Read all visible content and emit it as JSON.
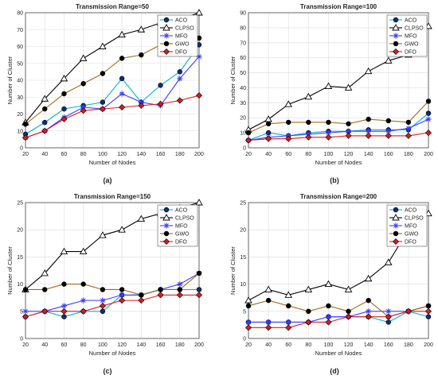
{
  "chart_data": [
    {
      "type": "line",
      "title": "Transmission Range=50",
      "caption": "(a)",
      "xlabel": "Number of Nodes",
      "ylabel": "Number of Cluster",
      "x": [
        20,
        40,
        60,
        80,
        100,
        120,
        140,
        160,
        180,
        200
      ],
      "xlim": [
        20,
        200
      ],
      "ylim": [
        0,
        80
      ],
      "yticks": [
        0,
        10,
        20,
        30,
        40,
        50,
        60,
        70,
        80
      ],
      "grid": true,
      "legend_position": "top-right",
      "series": [
        {
          "name": "ACO",
          "values": [
            8,
            15,
            23,
            25,
            27,
            41,
            27,
            37,
            45,
            61
          ]
        },
        {
          "name": "CLPSO",
          "values": [
            15,
            29,
            41,
            53,
            60,
            67,
            70,
            74,
            76,
            80
          ]
        },
        {
          "name": "MFO",
          "values": [
            6,
            10,
            18,
            24,
            23,
            32,
            27,
            25,
            41,
            54
          ]
        },
        {
          "name": "GWO",
          "values": [
            14,
            23,
            32,
            38,
            44,
            53,
            55,
            61,
            66,
            65
          ]
        },
        {
          "name": "DFO",
          "values": [
            6,
            10,
            17,
            22,
            23,
            24,
            25,
            26,
            28,
            31
          ]
        }
      ]
    },
    {
      "type": "line",
      "title": "Transmission Range=100",
      "caption": "(b)",
      "xlabel": "Number of Nodes",
      "ylabel": "Number of Cluster",
      "x": [
        20,
        40,
        60,
        80,
        100,
        120,
        140,
        160,
        180,
        200
      ],
      "xlim": [
        20,
        200
      ],
      "ylim": [
        0,
        90
      ],
      "yticks": [
        0,
        10,
        20,
        30,
        40,
        50,
        60,
        70,
        80,
        90
      ],
      "grid": true,
      "legend_position": "top-right",
      "series": [
        {
          "name": "ACO",
          "values": [
            5,
            10,
            8,
            10,
            11,
            11,
            12,
            12,
            12,
            23
          ]
        },
        {
          "name": "CLPSO",
          "values": [
            12,
            19,
            29,
            34,
            41,
            40,
            51,
            58,
            62,
            81
          ]
        },
        {
          "name": "MFO",
          "values": [
            5,
            7,
            8,
            9,
            10,
            11,
            11,
            11,
            13,
            19
          ]
        },
        {
          "name": "GWO",
          "values": [
            10,
            16,
            17,
            17,
            17,
            16,
            19,
            18,
            17,
            31
          ]
        },
        {
          "name": "DFO",
          "values": [
            5,
            6,
            6,
            7,
            7,
            8,
            8,
            8,
            8,
            10
          ]
        }
      ]
    },
    {
      "type": "line",
      "title": "Transmission Range=150",
      "caption": "(c)",
      "xlabel": "Number of Nodes",
      "ylabel": "Number of Cluster",
      "x": [
        20,
        40,
        60,
        80,
        100,
        120,
        140,
        160,
        180,
        200
      ],
      "xlim": [
        20,
        200
      ],
      "ylim": [
        0,
        25
      ],
      "yticks": [
        0,
        5,
        10,
        15,
        20,
        25
      ],
      "grid": true,
      "legend_position": "top-right",
      "series": [
        {
          "name": "ACO",
          "values": [
            4,
            5,
            4,
            5,
            5,
            8,
            8,
            9,
            9,
            9
          ]
        },
        {
          "name": "CLPSO",
          "values": [
            9,
            12,
            16,
            16,
            19,
            20,
            22,
            23,
            24,
            25
          ]
        },
        {
          "name": "MFO",
          "values": [
            5,
            5,
            6,
            7,
            7,
            8,
            8,
            9,
            10,
            12
          ]
        },
        {
          "name": "GWO",
          "values": [
            9,
            9,
            10,
            10,
            9,
            9,
            8,
            9,
            9,
            12
          ]
        },
        {
          "name": "DFO",
          "values": [
            4,
            5,
            5,
            5,
            6,
            7,
            7,
            8,
            8,
            8
          ]
        }
      ]
    },
    {
      "type": "line",
      "title": "Transmission Range=200",
      "caption": "(d)",
      "xlabel": "Number of Nodes",
      "ylabel": "Number of Cluster",
      "x": [
        20,
        40,
        60,
        80,
        100,
        120,
        140,
        160,
        180,
        200
      ],
      "xlim": [
        20,
        200
      ],
      "ylim": [
        0,
        25
      ],
      "yticks": [
        0,
        5,
        10,
        15,
        20,
        25
      ],
      "grid": true,
      "legend_position": "top-right",
      "series": [
        {
          "name": "ACO",
          "values": [
            3,
            3,
            3,
            3,
            4,
            4,
            4,
            3,
            5,
            4
          ]
        },
        {
          "name": "CLPSO",
          "values": [
            7,
            9,
            8,
            9,
            10,
            9,
            11,
            14,
            20,
            23
          ]
        },
        {
          "name": "MFO",
          "values": [
            3,
            3,
            3,
            3,
            4,
            4,
            5,
            5,
            5,
            6
          ]
        },
        {
          "name": "GWO",
          "values": [
            6,
            7,
            6,
            5,
            6,
            5,
            7,
            4,
            5,
            6
          ]
        },
        {
          "name": "DFO",
          "values": [
            2,
            2,
            2,
            3,
            3,
            4,
            4,
            4,
            5,
            5
          ]
        }
      ]
    }
  ],
  "series_style": {
    "ACO": {
      "color": "#00b4d8",
      "marker": "circle-filled",
      "fill": "#0b2f7a"
    },
    "CLPSO": {
      "color": "#000000",
      "marker": "triangle-open",
      "fill": "#ffffff"
    },
    "MFO": {
      "color": "#3b3bff",
      "marker": "star",
      "fill": "#3b3bff"
    },
    "GWO": {
      "color": "#a06a18",
      "marker": "circle-filled",
      "fill": "#000000"
    },
    "DFO": {
      "color": "#d81b1b",
      "marker": "diamond-filled",
      "fill": "#d81b1b"
    }
  }
}
